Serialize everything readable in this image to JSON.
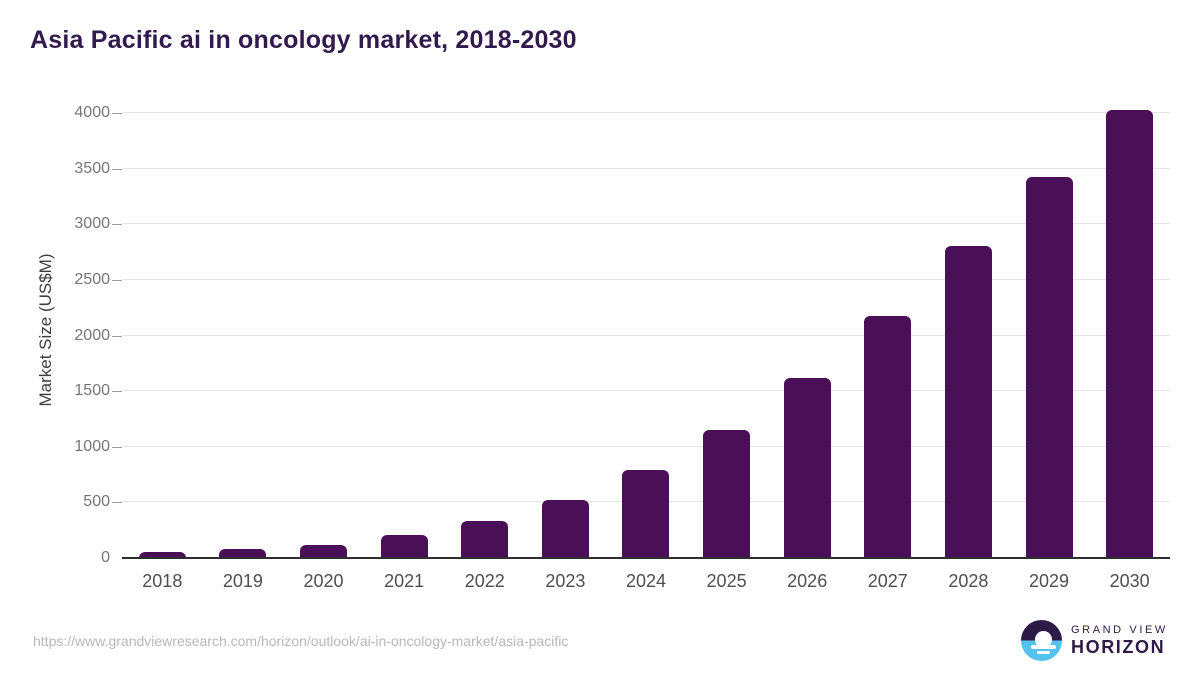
{
  "title": "Asia Pacific ai in oncology market, 2018-2030",
  "footer": {
    "source_url": "https://www.grandviewresearch.com/horizon/outlook/ai-in-oncology-market/asia-pacific",
    "logo_line1": "GRAND VIEW",
    "logo_line2": "HORIZON"
  },
  "colors": {
    "bar": "#4a1057",
    "title_text": "#311a4d",
    "gridline": "#e4e4e4",
    "axis_line": "#2e2e2e",
    "y_tick_label": "#767676",
    "x_tick_label": "#4f4f4f",
    "url_text": "#b8b8b8",
    "logo_purple": "#2e1a47",
    "logo_blue": "#55c1ef"
  },
  "chart_data": {
    "type": "bar",
    "title": "Asia Pacific ai in oncology market, 2018-2030",
    "categories": [
      "2018",
      "2019",
      "2020",
      "2021",
      "2022",
      "2023",
      "2024",
      "2025",
      "2026",
      "2027",
      "2028",
      "2029",
      "2030"
    ],
    "values": [
      55,
      80,
      120,
      210,
      330,
      520,
      790,
      1155,
      1620,
      2180,
      2810,
      3430,
      4030
    ],
    "xlabel": "",
    "ylabel": "Market Size (US$M)",
    "ylim": [
      0,
      4000
    ],
    "yticks": [
      0,
      500,
      1000,
      1500,
      2000,
      2500,
      3000,
      3500,
      4000
    ],
    "grid": true,
    "legend": false,
    "bar_color": "#4a1057"
  }
}
